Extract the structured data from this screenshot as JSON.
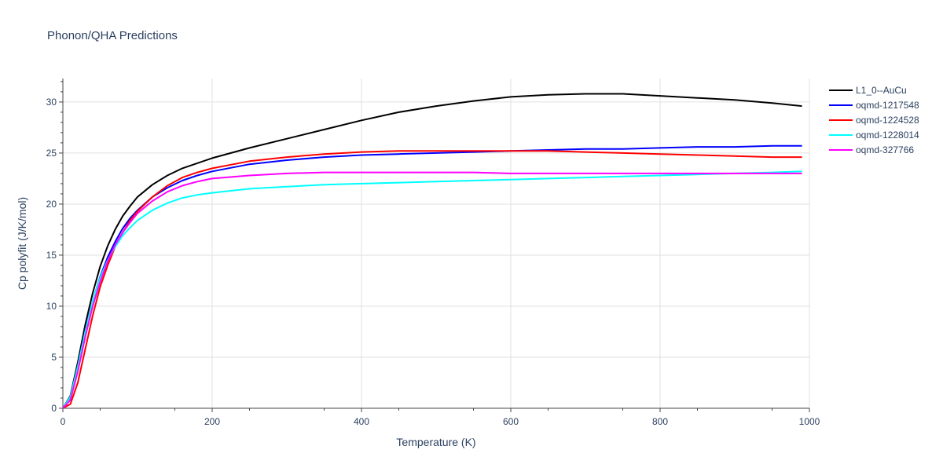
{
  "title": "Phonon/QHA Predictions",
  "chart_data": {
    "type": "line",
    "title": "Phonon/QHA Predictions",
    "xlabel": "Temperature (K)",
    "ylabel": "Cp polyfit (J/K/mol)",
    "xlim": [
      0,
      1000
    ],
    "ylim": [
      0,
      32.3
    ],
    "x_ticks": [
      0,
      200,
      400,
      600,
      800,
      1000
    ],
    "y_ticks": [
      0,
      5,
      10,
      15,
      20,
      25,
      30
    ],
    "grid": true,
    "legend_position": "top-right",
    "series": [
      {
        "name": "L1_0--AuCu",
        "color": "#000000",
        "x": [
          0,
          10,
          20,
          30,
          40,
          50,
          60,
          70,
          80,
          90,
          100,
          120,
          140,
          160,
          180,
          200,
          250,
          300,
          350,
          400,
          450,
          500,
          550,
          600,
          650,
          700,
          750,
          800,
          850,
          900,
          950,
          990
        ],
        "y": [
          0,
          1.2,
          4.5,
          8.2,
          11.3,
          13.9,
          15.9,
          17.5,
          18.8,
          19.8,
          20.7,
          21.9,
          22.8,
          23.5,
          24.0,
          24.5,
          25.5,
          26.4,
          27.3,
          28.2,
          29.0,
          29.6,
          30.1,
          30.5,
          30.7,
          30.8,
          30.8,
          30.6,
          30.4,
          30.2,
          29.9,
          29.6
        ]
      },
      {
        "name": "oqmd-1217548",
        "color": "#0000ff",
        "x": [
          0,
          10,
          20,
          30,
          40,
          50,
          60,
          70,
          80,
          90,
          100,
          120,
          140,
          160,
          180,
          200,
          250,
          300,
          350,
          400,
          450,
          500,
          550,
          600,
          650,
          700,
          750,
          800,
          850,
          900,
          950,
          990
        ],
        "y": [
          0,
          1.0,
          4.1,
          7.6,
          10.5,
          12.9,
          14.8,
          16.3,
          17.6,
          18.6,
          19.4,
          20.7,
          21.6,
          22.3,
          22.8,
          23.2,
          23.9,
          24.3,
          24.6,
          24.8,
          24.9,
          25.0,
          25.1,
          25.2,
          25.3,
          25.4,
          25.4,
          25.5,
          25.6,
          25.6,
          25.7,
          25.7
        ]
      },
      {
        "name": "oqmd-1224528",
        "color": "#ff0000",
        "x": [
          0,
          10,
          20,
          30,
          40,
          50,
          60,
          70,
          80,
          90,
          100,
          120,
          140,
          160,
          180,
          200,
          250,
          300,
          350,
          400,
          450,
          500,
          550,
          600,
          650,
          700,
          750,
          800,
          850,
          900,
          950,
          990
        ],
        "y": [
          0,
          0.4,
          2.5,
          5.8,
          9.1,
          11.9,
          14.0,
          15.8,
          17.2,
          18.4,
          19.3,
          20.7,
          21.8,
          22.6,
          23.1,
          23.5,
          24.2,
          24.6,
          24.9,
          25.1,
          25.2,
          25.2,
          25.2,
          25.2,
          25.2,
          25.1,
          25.0,
          24.9,
          24.8,
          24.7,
          24.6,
          24.6
        ]
      },
      {
        "name": "oqmd-1228014",
        "color": "#00ffff",
        "x": [
          0,
          10,
          20,
          30,
          40,
          50,
          60,
          70,
          80,
          90,
          100,
          120,
          140,
          160,
          180,
          200,
          250,
          300,
          350,
          400,
          450,
          500,
          550,
          600,
          650,
          700,
          750,
          800,
          850,
          900,
          950,
          990
        ],
        "y": [
          0,
          1.1,
          4.1,
          7.5,
          10.5,
          12.8,
          14.5,
          15.8,
          16.9,
          17.7,
          18.4,
          19.4,
          20.1,
          20.6,
          20.9,
          21.1,
          21.5,
          21.7,
          21.9,
          22.0,
          22.1,
          22.2,
          22.3,
          22.4,
          22.5,
          22.6,
          22.7,
          22.8,
          22.9,
          23.0,
          23.1,
          23.2
        ]
      },
      {
        "name": "oqmd-327766",
        "color": "#ff00ff",
        "x": [
          0,
          10,
          20,
          30,
          40,
          50,
          60,
          70,
          80,
          90,
          100,
          120,
          140,
          160,
          180,
          200,
          250,
          300,
          350,
          400,
          450,
          500,
          550,
          600,
          650,
          700,
          750,
          800,
          850,
          900,
          950,
          990
        ],
        "y": [
          0,
          0.8,
          3.6,
          7.0,
          10.0,
          12.4,
          14.4,
          16.0,
          17.2,
          18.2,
          19.1,
          20.3,
          21.2,
          21.8,
          22.2,
          22.5,
          22.8,
          23.0,
          23.1,
          23.1,
          23.1,
          23.1,
          23.1,
          23.0,
          23.0,
          23.0,
          23.0,
          23.0,
          23.0,
          23.0,
          23.0,
          23.0
        ]
      }
    ]
  }
}
